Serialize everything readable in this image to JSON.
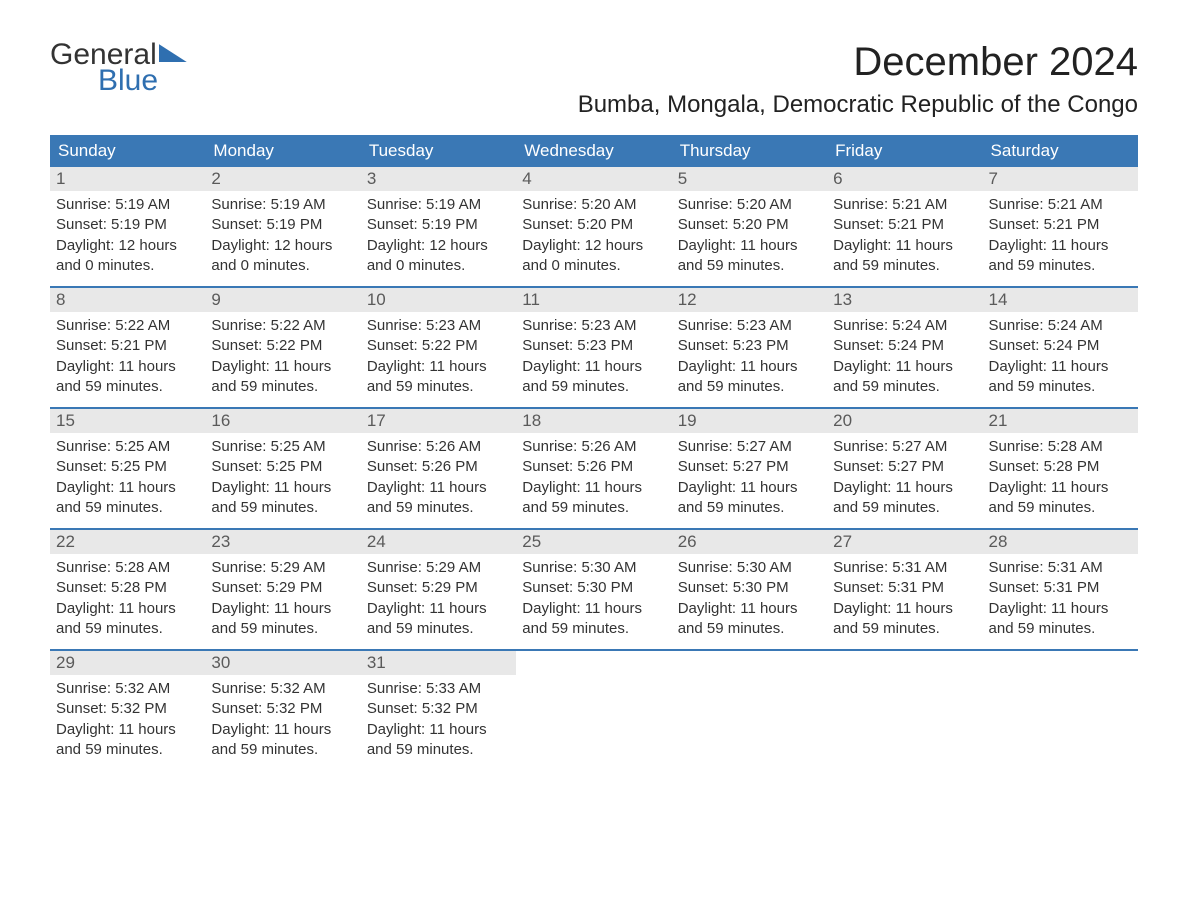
{
  "logo": {
    "word1": "General",
    "word2": "Blue"
  },
  "title": "December 2024",
  "location": "Bumba, Mongala, Democratic Republic of the Congo",
  "colors": {
    "header_bg": "#3a78b5",
    "header_text": "#ffffff",
    "daynum_bg": "#e8e8e8",
    "daynum_text": "#5a5a5a",
    "body_text": "#333333",
    "rule": "#3a78b5",
    "logo_accent": "#2f6fb0"
  },
  "day_names": [
    "Sunday",
    "Monday",
    "Tuesday",
    "Wednesday",
    "Thursday",
    "Friday",
    "Saturday"
  ],
  "weeks": [
    [
      {
        "n": "1",
        "sunrise": "Sunrise: 5:19 AM",
        "sunset": "Sunset: 5:19 PM",
        "day1": "Daylight: 12 hours",
        "day2": "and 0 minutes."
      },
      {
        "n": "2",
        "sunrise": "Sunrise: 5:19 AM",
        "sunset": "Sunset: 5:19 PM",
        "day1": "Daylight: 12 hours",
        "day2": "and 0 minutes."
      },
      {
        "n": "3",
        "sunrise": "Sunrise: 5:19 AM",
        "sunset": "Sunset: 5:19 PM",
        "day1": "Daylight: 12 hours",
        "day2": "and 0 minutes."
      },
      {
        "n": "4",
        "sunrise": "Sunrise: 5:20 AM",
        "sunset": "Sunset: 5:20 PM",
        "day1": "Daylight: 12 hours",
        "day2": "and 0 minutes."
      },
      {
        "n": "5",
        "sunrise": "Sunrise: 5:20 AM",
        "sunset": "Sunset: 5:20 PM",
        "day1": "Daylight: 11 hours",
        "day2": "and 59 minutes."
      },
      {
        "n": "6",
        "sunrise": "Sunrise: 5:21 AM",
        "sunset": "Sunset: 5:21 PM",
        "day1": "Daylight: 11 hours",
        "day2": "and 59 minutes."
      },
      {
        "n": "7",
        "sunrise": "Sunrise: 5:21 AM",
        "sunset": "Sunset: 5:21 PM",
        "day1": "Daylight: 11 hours",
        "day2": "and 59 minutes."
      }
    ],
    [
      {
        "n": "8",
        "sunrise": "Sunrise: 5:22 AM",
        "sunset": "Sunset: 5:21 PM",
        "day1": "Daylight: 11 hours",
        "day2": "and 59 minutes."
      },
      {
        "n": "9",
        "sunrise": "Sunrise: 5:22 AM",
        "sunset": "Sunset: 5:22 PM",
        "day1": "Daylight: 11 hours",
        "day2": "and 59 minutes."
      },
      {
        "n": "10",
        "sunrise": "Sunrise: 5:23 AM",
        "sunset": "Sunset: 5:22 PM",
        "day1": "Daylight: 11 hours",
        "day2": "and 59 minutes."
      },
      {
        "n": "11",
        "sunrise": "Sunrise: 5:23 AM",
        "sunset": "Sunset: 5:23 PM",
        "day1": "Daylight: 11 hours",
        "day2": "and 59 minutes."
      },
      {
        "n": "12",
        "sunrise": "Sunrise: 5:23 AM",
        "sunset": "Sunset: 5:23 PM",
        "day1": "Daylight: 11 hours",
        "day2": "and 59 minutes."
      },
      {
        "n": "13",
        "sunrise": "Sunrise: 5:24 AM",
        "sunset": "Sunset: 5:24 PM",
        "day1": "Daylight: 11 hours",
        "day2": "and 59 minutes."
      },
      {
        "n": "14",
        "sunrise": "Sunrise: 5:24 AM",
        "sunset": "Sunset: 5:24 PM",
        "day1": "Daylight: 11 hours",
        "day2": "and 59 minutes."
      }
    ],
    [
      {
        "n": "15",
        "sunrise": "Sunrise: 5:25 AM",
        "sunset": "Sunset: 5:25 PM",
        "day1": "Daylight: 11 hours",
        "day2": "and 59 minutes."
      },
      {
        "n": "16",
        "sunrise": "Sunrise: 5:25 AM",
        "sunset": "Sunset: 5:25 PM",
        "day1": "Daylight: 11 hours",
        "day2": "and 59 minutes."
      },
      {
        "n": "17",
        "sunrise": "Sunrise: 5:26 AM",
        "sunset": "Sunset: 5:26 PM",
        "day1": "Daylight: 11 hours",
        "day2": "and 59 minutes."
      },
      {
        "n": "18",
        "sunrise": "Sunrise: 5:26 AM",
        "sunset": "Sunset: 5:26 PM",
        "day1": "Daylight: 11 hours",
        "day2": "and 59 minutes."
      },
      {
        "n": "19",
        "sunrise": "Sunrise: 5:27 AM",
        "sunset": "Sunset: 5:27 PM",
        "day1": "Daylight: 11 hours",
        "day2": "and 59 minutes."
      },
      {
        "n": "20",
        "sunrise": "Sunrise: 5:27 AM",
        "sunset": "Sunset: 5:27 PM",
        "day1": "Daylight: 11 hours",
        "day2": "and 59 minutes."
      },
      {
        "n": "21",
        "sunrise": "Sunrise: 5:28 AM",
        "sunset": "Sunset: 5:28 PM",
        "day1": "Daylight: 11 hours",
        "day2": "and 59 minutes."
      }
    ],
    [
      {
        "n": "22",
        "sunrise": "Sunrise: 5:28 AM",
        "sunset": "Sunset: 5:28 PM",
        "day1": "Daylight: 11 hours",
        "day2": "and 59 minutes."
      },
      {
        "n": "23",
        "sunrise": "Sunrise: 5:29 AM",
        "sunset": "Sunset: 5:29 PM",
        "day1": "Daylight: 11 hours",
        "day2": "and 59 minutes."
      },
      {
        "n": "24",
        "sunrise": "Sunrise: 5:29 AM",
        "sunset": "Sunset: 5:29 PM",
        "day1": "Daylight: 11 hours",
        "day2": "and 59 minutes."
      },
      {
        "n": "25",
        "sunrise": "Sunrise: 5:30 AM",
        "sunset": "Sunset: 5:30 PM",
        "day1": "Daylight: 11 hours",
        "day2": "and 59 minutes."
      },
      {
        "n": "26",
        "sunrise": "Sunrise: 5:30 AM",
        "sunset": "Sunset: 5:30 PM",
        "day1": "Daylight: 11 hours",
        "day2": "and 59 minutes."
      },
      {
        "n": "27",
        "sunrise": "Sunrise: 5:31 AM",
        "sunset": "Sunset: 5:31 PM",
        "day1": "Daylight: 11 hours",
        "day2": "and 59 minutes."
      },
      {
        "n": "28",
        "sunrise": "Sunrise: 5:31 AM",
        "sunset": "Sunset: 5:31 PM",
        "day1": "Daylight: 11 hours",
        "day2": "and 59 minutes."
      }
    ],
    [
      {
        "n": "29",
        "sunrise": "Sunrise: 5:32 AM",
        "sunset": "Sunset: 5:32 PM",
        "day1": "Daylight: 11 hours",
        "day2": "and 59 minutes."
      },
      {
        "n": "30",
        "sunrise": "Sunrise: 5:32 AM",
        "sunset": "Sunset: 5:32 PM",
        "day1": "Daylight: 11 hours",
        "day2": "and 59 minutes."
      },
      {
        "n": "31",
        "sunrise": "Sunrise: 5:33 AM",
        "sunset": "Sunset: 5:32 PM",
        "day1": "Daylight: 11 hours",
        "day2": "and 59 minutes."
      },
      null,
      null,
      null,
      null
    ]
  ]
}
